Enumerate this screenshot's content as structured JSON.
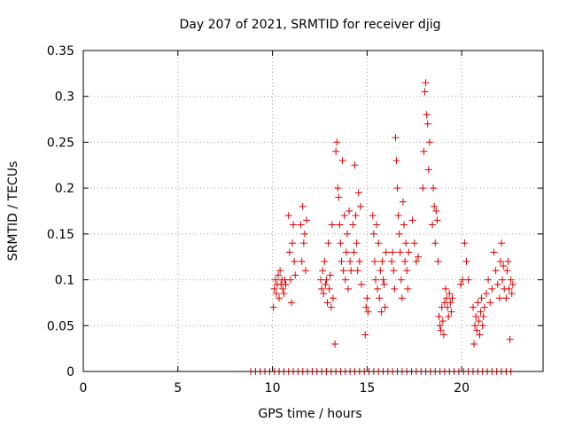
{
  "chart_data": {
    "type": "scatter",
    "title": "Day 207 of 2021, SRMTID for receiver djig",
    "xlabel": "GPS time / hours",
    "ylabel": "SRMTID / TECUs",
    "xlim": [
      0,
      24.3
    ],
    "ylim": [
      0,
      0.35
    ],
    "xticks": [
      0,
      5,
      10,
      15,
      20
    ],
    "yticks": [
      0,
      0.05,
      0.1,
      0.15,
      0.2,
      0.25,
      0.3,
      0.35
    ],
    "xtick_labels": [
      "0",
      "5",
      "10",
      "15",
      "20"
    ],
    "ytick_labels": [
      "0",
      "0.05",
      "0.1",
      "0.15",
      "0.2",
      "0.25",
      "0.3",
      "0.35"
    ],
    "grid": true,
    "marker": "plus",
    "color": "#dd0000",
    "series": [
      {
        "x": [
          10.05,
          10.1,
          10.15,
          10.2,
          10.25,
          10.3,
          10.35,
          10.4,
          10.45,
          10.5,
          10.55,
          10.6,
          10.65,
          10.7,
          10.85,
          10.9,
          10.95,
          11.0,
          11.05,
          11.1,
          11.15,
          11.2,
          11.5,
          11.55,
          11.6,
          11.65,
          11.7,
          11.75,
          11.8,
          12.55,
          12.6,
          12.65,
          12.7,
          12.75,
          12.8,
          12.85,
          12.9,
          12.95,
          13.0,
          13.05,
          13.1,
          13.15,
          13.2,
          13.3,
          13.35,
          13.4,
          13.45,
          13.5,
          13.55,
          13.6,
          13.65,
          13.7,
          13.75,
          13.8,
          13.85,
          13.9,
          13.95,
          14.0,
          14.05,
          14.1,
          14.15,
          14.25,
          14.3,
          14.35,
          14.4,
          14.45,
          14.5,
          14.55,
          14.6,
          14.65,
          14.7,
          14.9,
          14.95,
          15.0,
          15.05,
          15.3,
          15.35,
          15.4,
          15.45,
          15.5,
          15.55,
          15.6,
          15.65,
          15.7,
          15.75,
          15.8,
          15.85,
          15.9,
          15.95,
          16.0,
          16.3,
          16.35,
          16.4,
          16.45,
          16.5,
          16.55,
          16.6,
          16.65,
          16.7,
          16.75,
          16.8,
          16.85,
          16.9,
          16.95,
          17.0,
          17.05,
          17.1,
          17.15,
          17.2,
          17.4,
          17.5,
          17.6,
          17.7,
          17.95,
          18.0,
          18.05,
          18.1,
          18.15,
          18.2,
          18.25,
          18.3,
          18.45,
          18.5,
          18.55,
          18.6,
          18.65,
          18.7,
          18.75,
          18.8,
          18.85,
          18.9,
          18.95,
          19.0,
          19.05,
          19.1,
          19.15,
          19.2,
          19.25,
          19.3,
          19.35,
          19.4,
          19.45,
          19.5,
          19.95,
          20.05,
          20.15,
          20.25,
          20.35,
          20.6,
          20.65,
          20.7,
          20.75,
          20.8,
          20.85,
          20.9,
          20.95,
          21.0,
          21.05,
          21.1,
          21.15,
          21.2,
          21.3,
          21.4,
          21.5,
          21.6,
          21.7,
          21.8,
          21.9,
          22.0,
          22.05,
          22.1,
          22.15,
          22.2,
          22.25,
          22.35,
          22.4,
          22.45,
          22.5,
          22.55,
          22.6,
          22.65,
          22.7
        ],
        "y": [
          0.07,
          0.09,
          0.1,
          0.085,
          0.095,
          0.105,
          0.08,
          0.11,
          0.095,
          0.1,
          0.09,
          0.085,
          0.1,
          0.095,
          0.17,
          0.13,
          0.1,
          0.075,
          0.14,
          0.16,
          0.12,
          0.105,
          0.16,
          0.12,
          0.18,
          0.14,
          0.15,
          0.11,
          0.165,
          0.1,
          0.09,
          0.11,
          0.085,
          0.12,
          0.095,
          0.1,
          0.075,
          0.14,
          0.09,
          0.105,
          0.07,
          0.16,
          0.08,
          0.03,
          0.24,
          0.25,
          0.2,
          0.19,
          0.16,
          0.14,
          0.12,
          0.23,
          0.11,
          0.17,
          0.1,
          0.13,
          0.15,
          0.09,
          0.175,
          0.12,
          0.11,
          0.16,
          0.13,
          0.225,
          0.17,
          0.14,
          0.11,
          0.195,
          0.12,
          0.18,
          0.095,
          0.04,
          0.07,
          0.08,
          0.065,
          0.17,
          0.15,
          0.12,
          0.1,
          0.16,
          0.09,
          0.14,
          0.08,
          0.11,
          0.065,
          0.12,
          0.1,
          0.095,
          0.07,
          0.13,
          0.12,
          0.13,
          0.11,
          0.09,
          0.255,
          0.23,
          0.2,
          0.17,
          0.15,
          0.13,
          0.1,
          0.08,
          0.185,
          0.16,
          0.12,
          0.14,
          0.11,
          0.09,
          0.13,
          0.165,
          0.14,
          0.12,
          0.125,
          0.2,
          0.24,
          0.305,
          0.315,
          0.28,
          0.27,
          0.22,
          0.25,
          0.16,
          0.2,
          0.18,
          0.14,
          0.175,
          0.165,
          0.12,
          0.06,
          0.05,
          0.045,
          0.07,
          0.055,
          0.04,
          0.075,
          0.09,
          0.08,
          0.07,
          0.06,
          0.085,
          0.075,
          0.065,
          0.08,
          0.095,
          0.1,
          0.14,
          0.12,
          0.1,
          0.07,
          0.03,
          0.05,
          0.06,
          0.045,
          0.075,
          0.055,
          0.04,
          0.065,
          0.08,
          0.05,
          0.06,
          0.07,
          0.085,
          0.1,
          0.075,
          0.09,
          0.13,
          0.11,
          0.095,
          0.08,
          0.12,
          0.14,
          0.1,
          0.115,
          0.09,
          0.08,
          0.11,
          0.12,
          0.09,
          0.035,
          0.1,
          0.085,
          0.095
        ]
      },
      {
        "x": [
          8.85,
          9.1,
          9.35,
          9.6,
          9.85,
          10.1,
          10.35,
          10.6,
          10.85,
          11.1,
          11.35,
          11.6,
          11.85,
          12.1,
          12.35,
          12.6,
          12.85,
          13.1,
          13.35,
          13.6,
          13.85,
          14.1,
          14.35,
          14.6,
          14.85,
          15.1,
          15.35,
          15.6,
          15.85,
          16.1,
          16.35,
          16.6,
          16.85,
          17.1,
          17.35,
          17.6,
          17.85,
          18.1,
          18.35,
          18.6,
          18.85,
          19.1,
          19.35,
          19.6,
          19.85,
          20.1,
          20.35,
          20.6,
          20.85,
          21.1,
          21.35,
          21.6,
          21.85,
          22.1,
          22.35,
          22.6
        ],
        "y": [
          0,
          0,
          0,
          0,
          0,
          0,
          0,
          0,
          0,
          0,
          0,
          0,
          0,
          0,
          0,
          0,
          0,
          0,
          0,
          0,
          0,
          0,
          0,
          0,
          0,
          0,
          0,
          0,
          0,
          0,
          0,
          0,
          0,
          0,
          0,
          0,
          0,
          0,
          0,
          0,
          0,
          0,
          0,
          0,
          0,
          0,
          0,
          0,
          0,
          0,
          0,
          0,
          0,
          0,
          0,
          0
        ]
      }
    ]
  }
}
